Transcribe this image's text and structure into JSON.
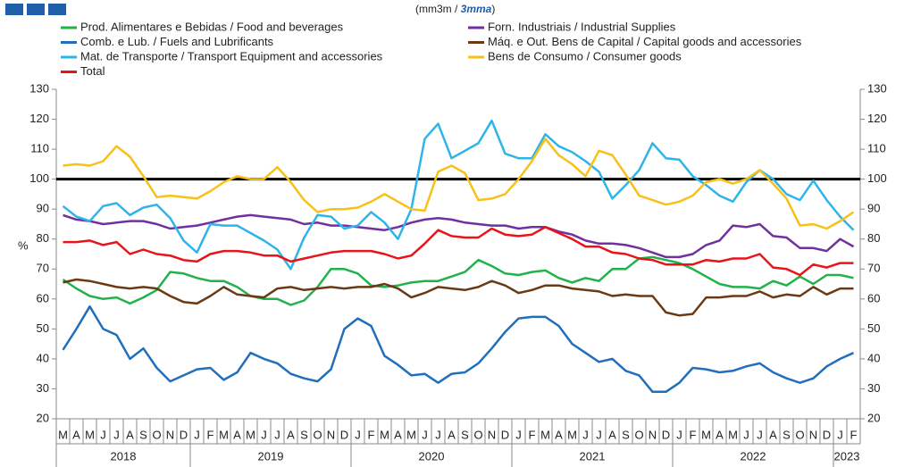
{
  "chart_data": {
    "type": "line",
    "subtitle_parts": [
      "(mm3m / ",
      "3mma",
      ")"
    ],
    "y_label": "%",
    "categories": [
      "M",
      "A",
      "M",
      "J",
      "J",
      "A",
      "S",
      "O",
      "N",
      "D",
      "J",
      "F",
      "M",
      "A",
      "M",
      "J",
      "J",
      "A",
      "S",
      "O",
      "N",
      "D",
      "J",
      "F",
      "M",
      "A",
      "M",
      "J",
      "J",
      "A",
      "S",
      "O",
      "N",
      "D",
      "J",
      "F",
      "M",
      "A",
      "M",
      "J",
      "J",
      "A",
      "S",
      "O",
      "N",
      "D",
      "J",
      "F",
      "M",
      "A",
      "M",
      "J",
      "J",
      "A",
      "S",
      "O",
      "N",
      "D",
      "J",
      "F"
    ],
    "year_labels": [
      "2018",
      "2019",
      "2020",
      "2021",
      "2022",
      "2023"
    ],
    "ylim": [
      20,
      130
    ],
    "yticks": [
      20,
      30,
      40,
      50,
      60,
      70,
      80,
      90,
      100,
      110,
      120,
      130
    ],
    "y2lim": [
      20,
      130
    ],
    "y2ticks": [
      20,
      30,
      40,
      50,
      60,
      70,
      80,
      90,
      100,
      110,
      120,
      130
    ],
    "reference_line": 100,
    "series": [
      {
        "name": "Prod. Alimentares e Bebidas / Food and beverages",
        "color": "#21b24b",
        "values": [
          66.5,
          63.5,
          61,
          60,
          60.5,
          58.5,
          60.5,
          63,
          69,
          68.5,
          67,
          66,
          66,
          64,
          61,
          60,
          60,
          58,
          59.5,
          64,
          70,
          70,
          68.5,
          64.5,
          64,
          64.5,
          65.5,
          66,
          66,
          67.5,
          69,
          73,
          71,
          68.5,
          68,
          69,
          69.5,
          67,
          65.5,
          67,
          66,
          70,
          70,
          73.5,
          74,
          73,
          72,
          70,
          67.5,
          65,
          64,
          64,
          63.5,
          66,
          64.5,
          67.5,
          65,
          68,
          68,
          67
        ]
      },
      {
        "name": "Forn. Industriais / Industrial Supplies",
        "color": "#7030a0",
        "values": [
          88,
          86.5,
          86,
          85,
          85.5,
          86,
          86,
          85,
          83.5,
          84,
          84.5,
          85.5,
          86.5,
          87.5,
          88,
          87.5,
          87,
          86.5,
          85,
          85.5,
          84.5,
          84.5,
          84,
          83.5,
          83,
          84,
          85.5,
          86.5,
          87,
          86.5,
          85.5,
          85,
          84.5,
          84.5,
          83.5,
          84,
          84,
          82.5,
          81.5,
          79.5,
          78.5,
          78.5,
          78,
          77,
          75.5,
          74,
          74,
          75,
          78,
          79.5,
          84.5,
          84,
          85,
          81,
          80.5,
          77,
          77,
          76,
          80,
          77.5
        ]
      },
      {
        "name": "Comb. e Lub. /  Fuels and Lubrificants",
        "color": "#1f6fbd",
        "values": [
          43,
          50,
          57.5,
          50,
          48,
          40,
          43.5,
          37,
          32.5,
          34.5,
          36.5,
          37,
          33,
          35.5,
          42,
          40,
          38.5,
          35,
          33.5,
          32.5,
          36.5,
          50,
          53.5,
          51,
          41,
          38,
          34.5,
          35,
          32,
          35,
          35.5,
          38.5,
          43.5,
          49,
          53.5,
          54,
          54,
          51,
          45,
          42,
          39,
          40,
          36,
          34.5,
          29,
          29,
          32,
          37,
          36.5,
          35.5,
          36,
          37.5,
          38.5,
          35.5,
          33.5,
          32,
          33.5,
          37.5,
          40,
          42
        ]
      },
      {
        "name": "Máq. e Out. Bens de Capital / Capital goods and accessories",
        "color": "#6b3a12",
        "values": [
          65.5,
          66.5,
          66,
          65,
          64,
          63.5,
          64,
          63.5,
          61,
          59,
          58.5,
          61,
          64,
          61.5,
          61,
          60.5,
          63.5,
          64,
          63,
          63.5,
          64,
          63.5,
          64,
          64,
          65,
          63.5,
          60.5,
          62,
          64,
          63.5,
          63,
          64,
          66,
          64.5,
          62,
          63,
          64.5,
          64.5,
          63.5,
          63,
          62.5,
          61,
          61.5,
          61,
          61,
          55.5,
          54.5,
          55,
          60.5,
          60.5,
          61,
          61,
          62.5,
          60.5,
          61.5,
          61,
          64,
          61.5,
          63.5,
          63.5
        ]
      },
      {
        "name": "Mat. de Transporte / Transport Equipment and accessories",
        "color": "#2fb4ea",
        "values": [
          91,
          87.5,
          86,
          91,
          92,
          88,
          90.5,
          91.5,
          87,
          79.5,
          75.5,
          85,
          84.5,
          84.5,
          82,
          79.5,
          76.5,
          70,
          80.5,
          88,
          87.5,
          83.5,
          84.5,
          89,
          85.5,
          80,
          90,
          113.5,
          118.5,
          107,
          109.5,
          112,
          119.5,
          108.5,
          107,
          107,
          115,
          111,
          109,
          106,
          102.5,
          93.5,
          98,
          103,
          112,
          107,
          106.5,
          101,
          98,
          94.5,
          92.5,
          99,
          103,
          100,
          95,
          93,
          99.5,
          93,
          87.5,
          83
        ]
      },
      {
        "name": "Bens de Consumo / Consumer goods",
        "color": "#f7c118",
        "values": [
          104.5,
          105,
          104.5,
          106,
          111,
          107.5,
          101,
          94,
          94.5,
          94,
          93.5,
          96,
          99,
          101,
          100,
          100,
          104,
          99,
          93,
          89,
          90,
          90,
          90.5,
          92.5,
          95,
          92.5,
          90,
          89.5,
          102.5,
          104.5,
          102,
          93,
          93.5,
          95,
          100,
          106,
          113.5,
          108,
          105,
          101,
          109.5,
          108,
          101.5,
          94.5,
          93,
          91.5,
          92.5,
          94.5,
          99,
          100,
          98.5,
          100,
          103,
          98.5,
          93.5,
          84.5,
          85,
          83.5,
          86,
          89
        ]
      },
      {
        "name": "Total",
        "color": "#e8141a",
        "values": [
          79,
          79,
          79.5,
          78,
          79,
          75,
          76.5,
          75,
          74.5,
          73,
          72.5,
          75,
          76,
          76,
          75.5,
          74.5,
          74.5,
          72.5,
          73.5,
          74.5,
          75.5,
          76,
          76,
          76,
          75,
          73.5,
          74.5,
          78.5,
          83,
          81,
          80.5,
          80.5,
          83.5,
          81.5,
          81,
          81.5,
          84,
          82,
          80,
          77.5,
          77.5,
          75.5,
          75,
          73.5,
          73,
          71.5,
          71.5,
          71.5,
          73,
          72.5,
          73.5,
          73.5,
          75,
          70.5,
          70,
          68,
          71.5,
          70.5,
          72,
          72
        ]
      }
    ]
  }
}
